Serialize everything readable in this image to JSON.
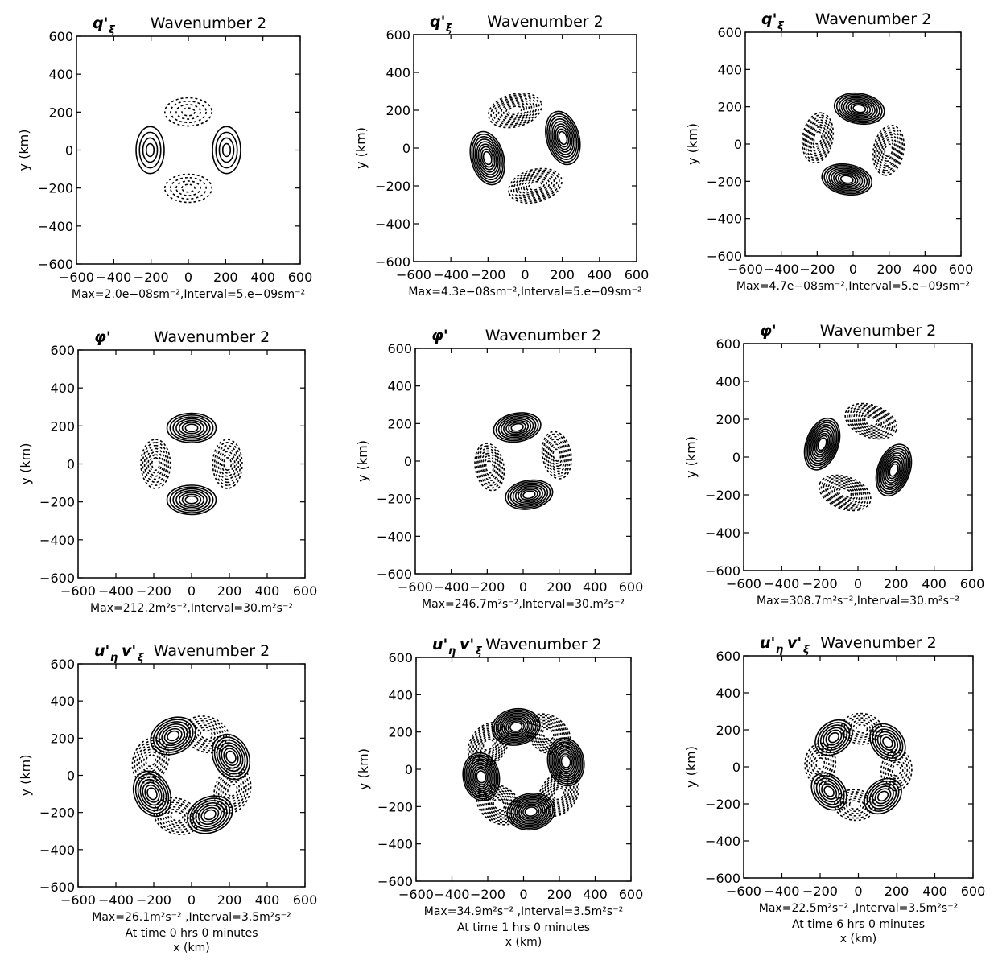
{
  "figure": {
    "column_times": [
      "At time   0 hrs 0 minutes",
      "At time   1 hrs 0 minutes",
      "At time   6 hrs 0 minutes"
    ],
    "xlabel": "x (km)"
  },
  "chart_data": [
    {
      "panel_id": "r1c1",
      "type": "contour",
      "field": "q'",
      "field_sub": "ξ",
      "title": "Wavenumber 2",
      "xlabel": "",
      "ylabel": "y (km)",
      "xlim": [
        -600,
        600
      ],
      "ylim": [
        -600,
        600
      ],
      "xticks": [
        -600,
        -400,
        -200,
        0,
        200,
        400,
        600
      ],
      "yticks": [
        -600,
        -400,
        -200,
        0,
        200,
        400,
        600
      ],
      "caption": "Max=2.0e−08sm⁻²,Interval=5.e−09sm⁻²",
      "max": 2e-08,
      "interval": 5e-09,
      "pattern": "quadrupole",
      "lobe_radius": 205,
      "rotation_deg": 0,
      "positive_lobes_deg": [
        0,
        180
      ],
      "negative_lobes_deg": [
        90,
        270
      ],
      "negative_dashed": true
    },
    {
      "panel_id": "r1c2",
      "type": "contour",
      "field": "q'",
      "field_sub": "ξ",
      "title": "Wavenumber 2",
      "xlabel": "",
      "ylabel": "y (km)",
      "xlim": [
        -600,
        600
      ],
      "ylim": [
        -600,
        600
      ],
      "xticks": [
        -600,
        -400,
        -200,
        0,
        200,
        400,
        600
      ],
      "yticks": [
        -600,
        -400,
        -200,
        0,
        200,
        400,
        600
      ],
      "caption": "Max=4.3e−08sm⁻²,Interval=5.e−09sm⁻²",
      "max": 4.3e-08,
      "interval": 5e-09,
      "pattern": "quadrupole",
      "lobe_radius": 210,
      "rotation_deg": 15,
      "negative_dashed": true
    },
    {
      "panel_id": "r1c3",
      "type": "contour",
      "field": "q'",
      "field_sub": "ξ",
      "title": "Wavenumber 2",
      "xlabel": "",
      "ylabel": "y (km)",
      "xlim": [
        -600,
        600
      ],
      "ylim": [
        -600,
        600
      ],
      "xticks": [
        -600,
        -400,
        -200,
        0,
        200,
        400,
        600
      ],
      "yticks": [
        -600,
        -400,
        -200,
        0,
        200,
        400,
        600
      ],
      "caption": "Max=4.7e−08sm⁻²,Interval=5.e−09sm⁻²",
      "max": 4.7e-08,
      "interval": 5e-09,
      "pattern": "quadrupole",
      "lobe_radius": 200,
      "rotation_deg": 80,
      "negative_dashed": true
    },
    {
      "panel_id": "r2c1",
      "type": "contour",
      "field": "φ'",
      "field_sub": "",
      "title": "Wavenumber 2",
      "xlabel": "",
      "ylabel": "y (km)",
      "xlim": [
        -600,
        600
      ],
      "ylim": [
        -600,
        600
      ],
      "xticks": [
        -600,
        -400,
        -200,
        0,
        200,
        400,
        600
      ],
      "yticks": [
        -600,
        -400,
        -200,
        0,
        200,
        400,
        600
      ],
      "caption": "Max=212.2m²s⁻²,Interval=30.m²s⁻²",
      "max": 212.2,
      "interval": 30,
      "pattern": "quadrupole",
      "lobe_radius": 190,
      "rotation_deg": 90,
      "positive_lobes_deg": [
        90,
        270
      ],
      "negative_lobes_deg": [
        0,
        180
      ],
      "negative_dashed": true
    },
    {
      "panel_id": "r2c2",
      "type": "contour",
      "field": "φ'",
      "field_sub": "",
      "title": "Wavenumber 2",
      "xlabel": "",
      "ylabel": "y (km)",
      "xlim": [
        -600,
        600
      ],
      "ylim": [
        -600,
        600
      ],
      "xticks": [
        -600,
        -400,
        -200,
        0,
        200,
        400,
        600
      ],
      "yticks": [
        -600,
        -400,
        -200,
        0,
        200,
        400,
        600
      ],
      "caption": "Max=246.7m²s⁻²,Interval=30.m²s⁻²",
      "max": 246.7,
      "interval": 30,
      "pattern": "quadrupole",
      "lobe_radius": 190,
      "rotation_deg": 100,
      "negative_dashed": true
    },
    {
      "panel_id": "r2c3",
      "type": "contour",
      "field": "φ'",
      "field_sub": "",
      "title": "Wavenumber 2",
      "xlabel": "",
      "ylabel": "y (km)",
      "xlim": [
        -600,
        600
      ],
      "ylim": [
        -600,
        600
      ],
      "xticks": [
        -600,
        -400,
        -200,
        0,
        200,
        400,
        600
      ],
      "yticks": [
        -600,
        -400,
        -200,
        0,
        200,
        400,
        600
      ],
      "caption": "Max=308.7m²s⁻²,Interval=30.m²s⁻²",
      "max": 308.7,
      "interval": 30,
      "pattern": "quadrupole",
      "lobe_radius": 200,
      "rotation_deg": 160,
      "negative_dashed": true
    },
    {
      "panel_id": "r3c1",
      "type": "contour",
      "field": "u'",
      "field_sub": "η",
      "field2": "v'",
      "field2_sub": "ξ",
      "title": "Wavenumber 2",
      "xlabel": "",
      "ylabel": "y (km)",
      "xlim": [
        -600,
        600
      ],
      "ylim": [
        -600,
        600
      ],
      "xticks": [
        -600,
        -400,
        -200,
        0,
        200,
        400,
        600
      ],
      "yticks": [
        -600,
        -400,
        -200,
        0,
        200,
        400,
        600
      ],
      "caption": "Max=26.1m²s⁻²  ,Interval=3.5m²s⁻²",
      "max": 26.1,
      "interval": 3.5,
      "pattern": "octupole",
      "lobe_radius": 230,
      "rotation_deg": 25,
      "negative_dashed": true
    },
    {
      "panel_id": "r3c2",
      "type": "contour",
      "field": "u'",
      "field_sub": "η",
      "field2": "v'",
      "field2_sub": "ξ",
      "title": "Wavenumber 2",
      "xlabel": "",
      "ylabel": "y (km)",
      "xlim": [
        -600,
        600
      ],
      "ylim": [
        -600,
        600
      ],
      "xticks": [
        -600,
        -400,
        -200,
        0,
        200,
        400,
        600
      ],
      "yticks": [
        -600,
        -400,
        -200,
        0,
        200,
        400,
        600
      ],
      "caption": "Max=34.9m²s⁻²  ,Interval=3.5m²s⁻²",
      "max": 34.9,
      "interval": 3.5,
      "pattern": "octupole",
      "lobe_radius": 240,
      "rotation_deg": 10,
      "negative_dashed": true
    },
    {
      "panel_id": "r3c3",
      "type": "contour",
      "field": "u'",
      "field_sub": "η",
      "field2": "v'",
      "field2_sub": "ξ",
      "title": "Wavenumber 2",
      "xlabel": "",
      "ylabel": "y (km)",
      "xlim": [
        -600,
        600
      ],
      "ylim": [
        -600,
        600
      ],
      "xticks": [
        -600,
        -400,
        -200,
        0,
        200,
        400,
        600
      ],
      "yticks": [
        -600,
        -400,
        -200,
        0,
        200,
        400,
        600
      ],
      "caption": "Max=22.5m²s⁻²  ,Interval=3.5m²s⁻²",
      "max": 22.5,
      "interval": 3.5,
      "pattern": "octupole",
      "lobe_radius": 200,
      "rotation_deg": 40,
      "negative_dashed": true
    }
  ]
}
